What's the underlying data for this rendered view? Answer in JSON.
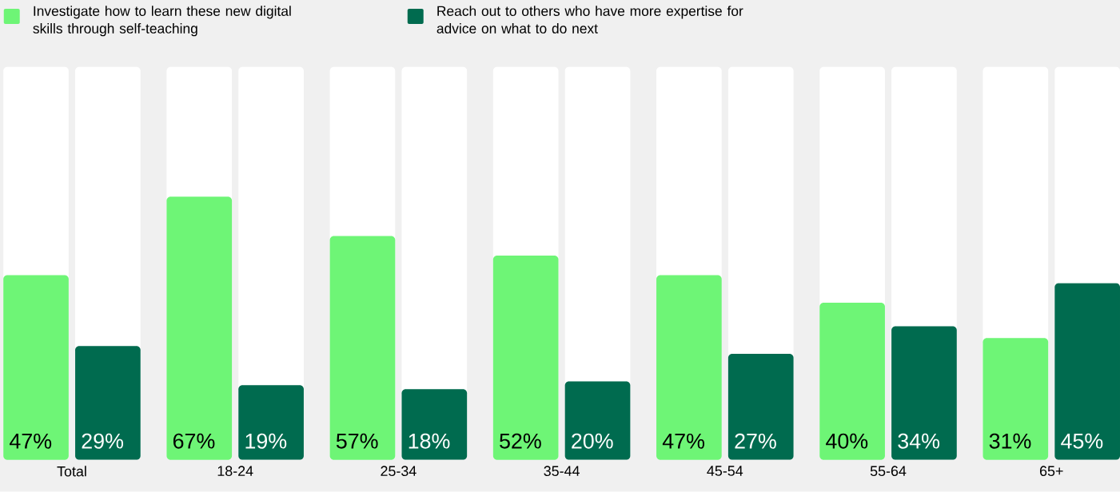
{
  "chart_data": {
    "type": "bar",
    "categories": [
      "Total",
      "18-24",
      "25-34",
      "35-44",
      "45-54",
      "55-64",
      "65+"
    ],
    "series": [
      {
        "name": "Investigate how to learn these new digital skills through self-teaching",
        "color": "#6ef576",
        "values": [
          47,
          67,
          57,
          52,
          47,
          40,
          31
        ],
        "value_labels": [
          "47%",
          "67%",
          "57%",
          "52%",
          "47%",
          "40%",
          "31%"
        ]
      },
      {
        "name": "Reach out to others who have more expertise for advice on what to do next",
        "color": "#006b4f",
        "values": [
          29,
          19,
          18,
          20,
          27,
          34,
          45
        ],
        "value_labels": [
          "29%",
          "19%",
          "18%",
          "20%",
          "27%",
          "34%",
          "45%"
        ]
      }
    ],
    "ylim": [
      0,
      100
    ],
    "tick_labels": "x",
    "legend": "top left",
    "grid": false
  }
}
